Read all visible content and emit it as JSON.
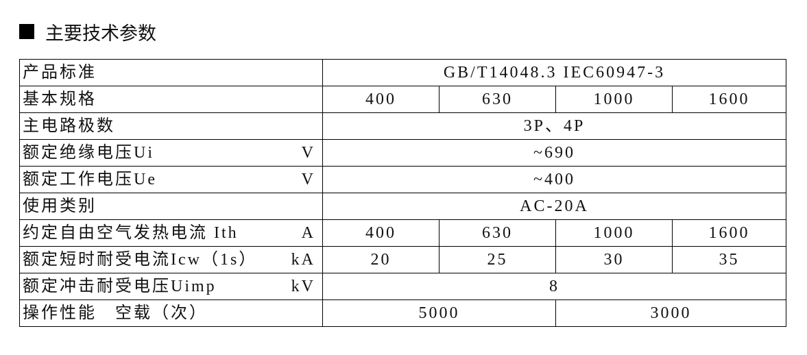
{
  "title": "主要技术参数",
  "rows": [
    {
      "label": "产品标准",
      "unit": "",
      "values": [
        "GB/T14048.3  IEC60947-3"
      ],
      "spans": [
        4
      ]
    },
    {
      "label": "基本规格",
      "unit": "",
      "values": [
        "400",
        "630",
        "1000",
        "1600"
      ],
      "spans": [
        1,
        1,
        1,
        1
      ]
    },
    {
      "label": "主电路极数",
      "unit": "",
      "values": [
        "3P、4P"
      ],
      "spans": [
        4
      ]
    },
    {
      "label": "额定绝缘电压Ui",
      "unit": "V",
      "values": [
        "~690"
      ],
      "spans": [
        4
      ]
    },
    {
      "label": "额定工作电压Ue",
      "unit": "V",
      "values": [
        "~400"
      ],
      "spans": [
        4
      ]
    },
    {
      "label": "使用类别",
      "unit": "",
      "values": [
        "AC-20A"
      ],
      "spans": [
        4
      ]
    },
    {
      "label": "约定自由空气发热电流 Ith",
      "unit": "A",
      "values": [
        "400",
        "630",
        "1000",
        "1600"
      ],
      "spans": [
        1,
        1,
        1,
        1
      ]
    },
    {
      "label": "额定短时耐受电流Icw（1s）",
      "unit": "kA",
      "values": [
        "20",
        "25",
        "30",
        "35"
      ],
      "spans": [
        1,
        1,
        1,
        1
      ]
    },
    {
      "label": "额定冲击耐受电压Uimp",
      "unit": "kV",
      "values": [
        "8"
      ],
      "spans": [
        4
      ]
    },
    {
      "label": "操作性能　空载（次）",
      "unit": "",
      "values": [
        "5000",
        "3000"
      ],
      "spans": [
        2,
        2
      ]
    }
  ]
}
